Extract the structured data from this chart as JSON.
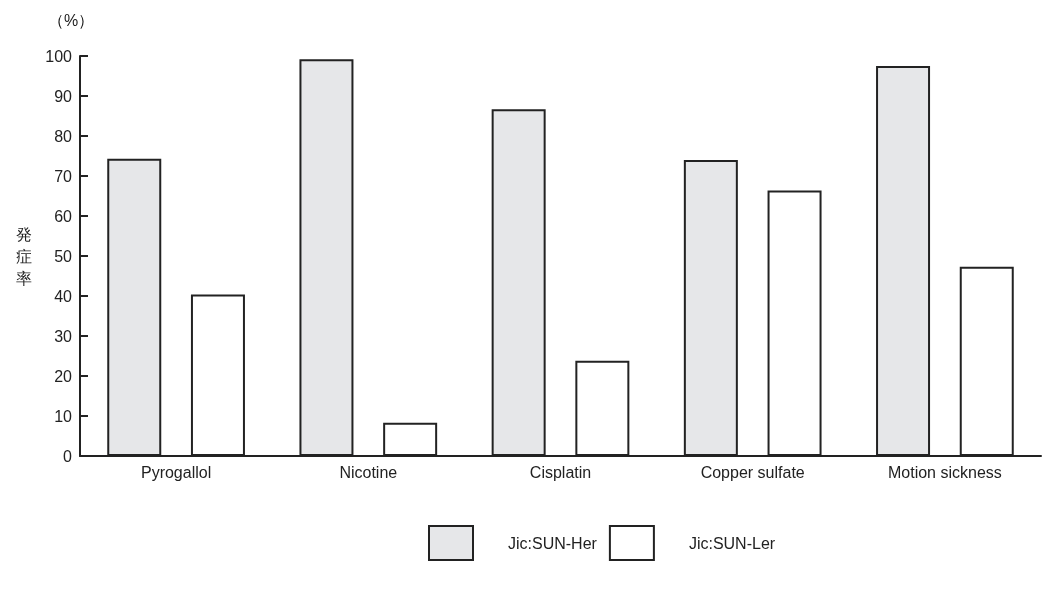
{
  "chart_data": {
    "type": "bar",
    "ylabel": "発症率",
    "annotations": [
      "（%）"
    ],
    "categories": [
      "Pyrogallol",
      "Nicotine",
      "Cisplatin",
      "Copper sulfate",
      "Motion sickness"
    ],
    "series": [
      {
        "name": "Jic:SUN-Her",
        "color": "#e6e7e9",
        "values": [
          74.3,
          99.2,
          86.7,
          74.0,
          97.5
        ]
      },
      {
        "name": "Jic:SUN-Ler",
        "color": "#ffffff",
        "values": [
          40.4,
          8.3,
          23.8,
          66.4,
          47.3
        ]
      }
    ],
    "ylim": [
      0,
      100
    ],
    "yticks": [
      0,
      10,
      20,
      30,
      40,
      50,
      60,
      70,
      80,
      90,
      100
    ],
    "grid": false,
    "legend": "bottom"
  }
}
